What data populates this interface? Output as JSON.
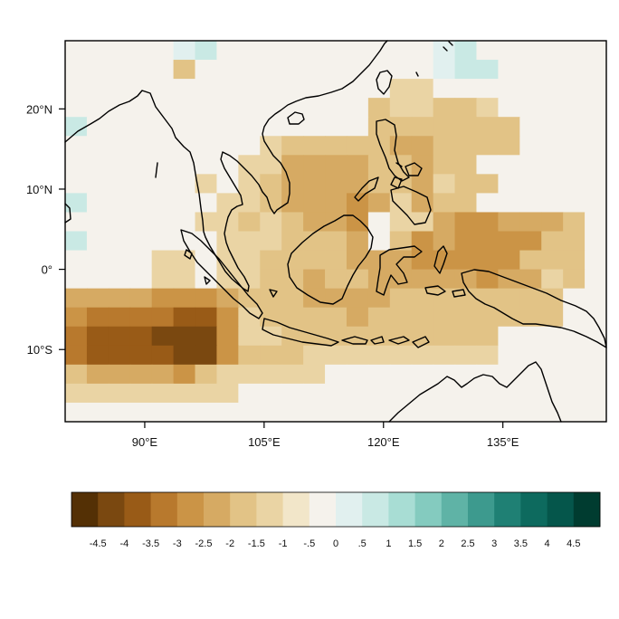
{
  "map": {
    "lon_range": [
      80,
      148
    ],
    "lat_range": [
      -19,
      28.5
    ],
    "lon_ticks": [
      {
        "value": 90,
        "label": "90°E"
      },
      {
        "value": 105,
        "label": "105°E"
      },
      {
        "value": 120,
        "label": "120°E"
      },
      {
        "value": 135,
        "label": "135°E"
      }
    ],
    "lat_ticks": [
      {
        "value": 20,
        "label": "20°N"
      },
      {
        "value": 10,
        "label": "10°N"
      },
      {
        "value": 0,
        "label": "0°"
      },
      {
        "value": -10,
        "label": "10°S"
      }
    ],
    "grid": false
  },
  "colorbar": {
    "labels": [
      "-4.5",
      "-4",
      "-3.5",
      "-3",
      "-2.5",
      "-2",
      "-1.5",
      "-1",
      "-.5",
      "0",
      ".5",
      "1",
      "1.5",
      "2",
      "2.5",
      "3",
      "3.5",
      "4",
      "4.5"
    ],
    "colors": [
      "#543005",
      "#7a4810",
      "#995b17",
      "#b8792d",
      "#cb9446",
      "#d6aa63",
      "#e2c386",
      "#ead4a4",
      "#f2e6c9",
      "#f5f2ec",
      "#e1f0ef",
      "#c9e9e4",
      "#a8ddd4",
      "#84cbbf",
      "#5fb3a6",
      "#3d9a8e",
      "#1f8074",
      "#0d6a5e",
      "#05564b",
      "#003c30"
    ],
    "position": "bottom"
  }
}
